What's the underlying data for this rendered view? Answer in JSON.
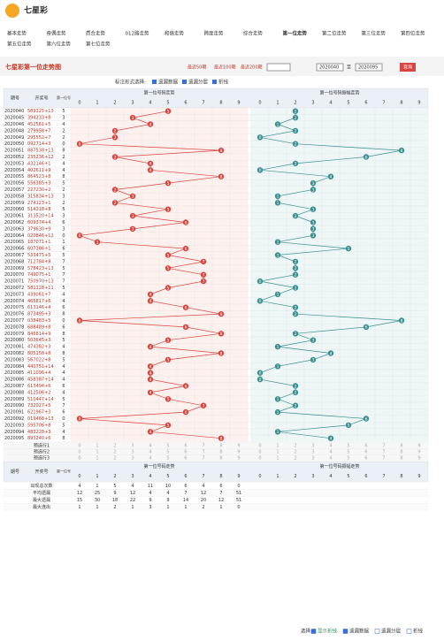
{
  "header": {
    "site": "七星彩"
  },
  "nav": [
    [
      "基本走势",
      "奇偶走势",
      "质合走势",
      "012路走势",
      "和值走势",
      "跨度走势",
      "综合走势",
      "第一位走势",
      "第二位走势",
      "第三位走势",
      "第四位走势"
    ],
    [
      "第五位走势",
      "第六位走势",
      "第七位走势"
    ]
  ],
  "page_title": "七星彩第一位走势图",
  "controls": {
    "recent": [
      "最近50期",
      "最近100期",
      "最近200期"
    ],
    "from": "2020040",
    "to_label": "至",
    "to": "2020095",
    "button": "查询"
  },
  "options": {
    "label": "标注形式选择:",
    "items": [
      "遗漏数据",
      "遗漏分层",
      "折线"
    ]
  },
  "chart_data": {
    "type": "trend",
    "columns": {
      "issue": "期号",
      "draw": "开奖号",
      "first": "第一位号"
    },
    "digits": [
      0,
      1,
      2,
      3,
      4,
      5,
      6,
      7,
      8,
      9
    ],
    "issues": [
      "2020040",
      "2020045",
      "2020046",
      "2020048",
      "2020049",
      "2020050",
      "2020051",
      "2020052",
      "2020053",
      "2020054",
      "2020055",
      "2020056",
      "2020057",
      "2020058",
      "2020059",
      "2020060",
      "2020061",
      "2020062",
      "2020063",
      "2020064",
      "2020065",
      "2020066",
      "2020067",
      "2020068",
      "2020069",
      "2020070",
      "2020071",
      "2020072",
      "2020073",
      "2020074",
      "2020075",
      "2020076",
      "2020077",
      "2020078",
      "2020079",
      "2020080",
      "2020081",
      "2020082",
      "2020083",
      "2020084",
      "2020085",
      "2020086",
      "2020087",
      "2020088",
      "2020089",
      "2020090",
      "2020091",
      "2020092",
      "2020093",
      "2020094",
      "2020095"
    ],
    "draws": [
      "589325+13",
      "394233+8",
      "452561+5",
      "279958+7",
      "295552+7",
      "092714+3",
      "887538+13",
      "235236+12",
      "432146+1",
      "402611+9",
      "864523+8",
      "556385+3",
      "227230+2",
      "315834+13",
      "274123+1",
      "514318+8",
      "313520+14",
      "609374+4",
      "379630+9",
      "020846+12",
      "187071+1",
      "607386+1",
      "533475+5",
      "712784+8",
      "578423+13",
      "749075+1",
      "750970+13",
      "581128+11",
      "439061+7",
      "465817+6",
      "613146+4",
      "873495+3",
      "038483+5",
      "688489+8",
      "846814+9",
      "503645+3",
      "474382+3",
      "805158+8",
      "567022+8",
      "440751+14",
      "411096+4",
      "458387+14",
      "613494+6",
      "412506+2",
      "510447+14",
      "732027+5",
      "621967+3",
      "019468+13",
      "595706+8",
      "483228+3",
      "893240+6"
    ],
    "series": [
      {
        "name": "第一位号码走势",
        "color": "#d9453f",
        "values": [
          5,
          3,
          4,
          2,
          2,
          0,
          8,
          2,
          4,
          4,
          8,
          5,
          2,
          3,
          2,
          5,
          3,
          6,
          3,
          0,
          1,
          6,
          5,
          7,
          5,
          7,
          7,
          5,
          4,
          4,
          6,
          8,
          0,
          6,
          8,
          5,
          4,
          8,
          5,
          4,
          4,
          4,
          6,
          4,
          5,
          7,
          6,
          0,
          5,
          4,
          8
        ]
      },
      {
        "name": "第一位号码振幅走势",
        "color": "#3a8f8f",
        "values": [
          2,
          2,
          1,
          2,
          0,
          2,
          8,
          6,
          2,
          0,
          4,
          3,
          3,
          1,
          1,
          3,
          2,
          3,
          3,
          3,
          1,
          5,
          1,
          2,
          2,
          2,
          0,
          2,
          1,
          0,
          2,
          2,
          8,
          6,
          2,
          3,
          1,
          4,
          3,
          1,
          0,
          0,
          2,
          2,
          1,
          2,
          1,
          6,
          5,
          1,
          4
        ]
      }
    ],
    "preselect": [
      "预选行1",
      "预选行2",
      "预选行3"
    ],
    "stats": {
      "labels": [
        "出现总次数",
        "平均遗漏",
        "最大遗漏",
        "最大连出"
      ],
      "rows": [
        [
          4,
          1,
          5,
          4,
          11,
          10,
          6,
          4,
          6,
          0
        ],
        [
          12,
          25,
          9,
          12,
          4,
          4,
          7,
          12,
          7,
          51
        ],
        [
          15,
          30,
          18,
          22,
          9,
          9,
          14,
          20,
          12,
          51
        ],
        [
          1,
          1,
          2,
          1,
          3,
          1,
          1,
          2,
          1,
          0
        ]
      ]
    }
  },
  "footer": {
    "label": "选择:",
    "items": [
      "显示折线",
      "遗漏数据",
      "遗漏分层",
      "折线"
    ]
  }
}
